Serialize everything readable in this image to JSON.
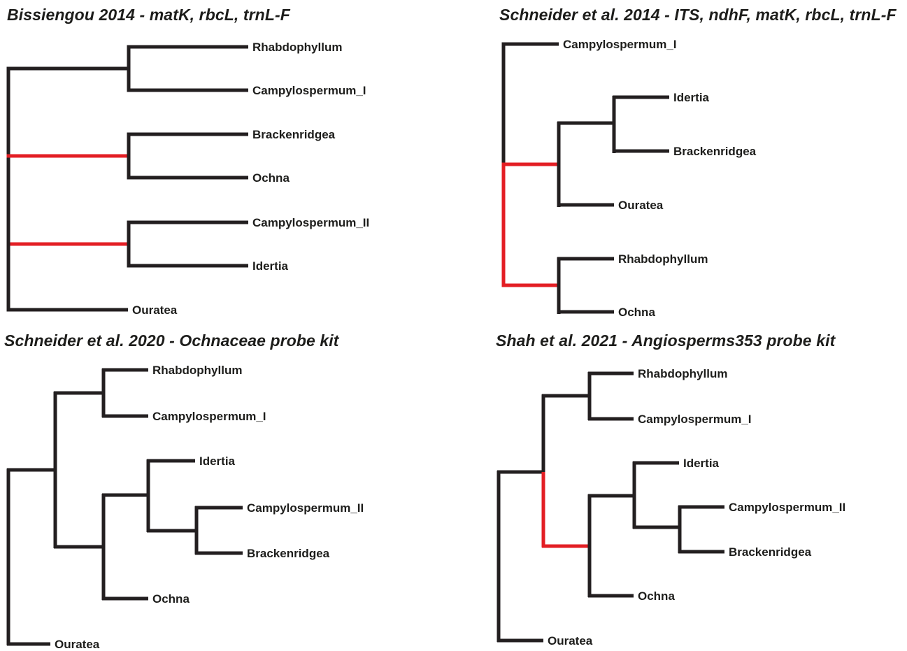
{
  "colors": {
    "branch": "#231f20",
    "highlight": "#e31e24"
  },
  "trees": [
    {
      "title": "Bissiengou 2014 - matK, rbcL, trnL-F",
      "tips": [
        "Rhabdophyllum",
        "Campylospermum_I",
        "Brackenridgea",
        "Ochna",
        "Campylospermum_II",
        "Idertia",
        "Ouratea"
      ],
      "highlighted_taxa": [
        "Brackenridgea",
        "Ochna",
        "Campylospermum_II",
        "Idertia"
      ]
    },
    {
      "title": "Schneider et al. 2014 - ITS, ndhF, matK, rbcL, trnL-F",
      "tips": [
        "Campylospermum_I",
        "Idertia",
        "Brackenridgea",
        "Ouratea",
        "Rhabdophyllum",
        "Ochna"
      ],
      "highlighted_taxa": [
        "Idertia",
        "Brackenridgea",
        "Ouratea",
        "Rhabdophyllum",
        "Ochna"
      ]
    },
    {
      "title": "Schneider et al. 2020 - Ochnaceae probe kit",
      "tips": [
        "Rhabdophyllum",
        "Campylospermum_I",
        "Idertia",
        "Campylospermum_II",
        "Brackenridgea",
        "Ochna",
        "Ouratea"
      ],
      "highlighted_taxa": []
    },
    {
      "title": "Shah et al. 2021 - Angiosperms353 probe kit",
      "tips": [
        "Rhabdophyllum",
        "Campylospermum_I",
        "Idertia",
        "Campylospermum_II",
        "Brackenridgea",
        "Ochna",
        "Ouratea"
      ],
      "highlighted_taxa": [
        "Idertia",
        "Campylospermum_II",
        "Brackenridgea",
        "Ochna"
      ]
    }
  ]
}
